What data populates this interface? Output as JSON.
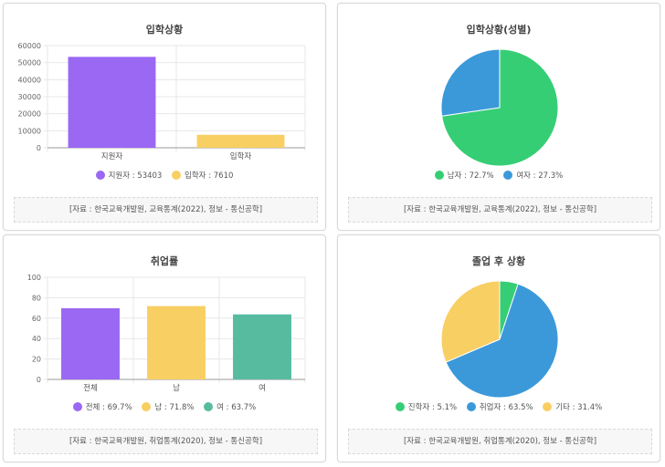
{
  "colors": {
    "purple": "#9b68f3",
    "yellow": "#f8cf63",
    "green": "#36ce75",
    "blue": "#3b99da",
    "teal": "#57bba0",
    "grid": "#e7e7e7",
    "axis": "#9a9a9a"
  },
  "chart_data": [
    {
      "id": "admission",
      "type": "bar",
      "title": "입학상황",
      "categories": [
        "지원자",
        "입학자"
      ],
      "values": [
        53403,
        7610
      ],
      "colors": [
        "#9b68f3",
        "#f8cf63"
      ],
      "ylim": [
        0,
        60000
      ],
      "yticks": [
        0,
        10000,
        20000,
        30000,
        40000,
        50000,
        60000
      ],
      "grid": true,
      "legend_position": "bottom",
      "legend": [
        "지원자 : 53403",
        "입학자 : 7610"
      ],
      "source": "[자료 : 한국교육개발원, 교육통계(2022), 정보 - 통신공학]"
    },
    {
      "id": "gender",
      "type": "pie",
      "title": "입학상황(성별)",
      "categories": [
        "남자",
        "여자"
      ],
      "values": [
        72.7,
        27.3
      ],
      "colors": [
        "#36ce75",
        "#3b99da"
      ],
      "legend_position": "bottom",
      "legend": [
        "남자 : 72.7%",
        "여자 : 27.3%"
      ],
      "source": "[자료 : 한국교육개발원, 교육통계(2022), 정보 - 통신공학]"
    },
    {
      "id": "employment",
      "type": "bar",
      "title": "취업률",
      "categories": [
        "전체",
        "남",
        "여"
      ],
      "values": [
        69.7,
        71.8,
        63.7
      ],
      "colors": [
        "#9b68f3",
        "#f8cf63",
        "#57bba0"
      ],
      "ylim": [
        0,
        100
      ],
      "yticks": [
        0,
        20,
        40,
        60,
        80,
        100
      ],
      "grid": true,
      "legend_position": "bottom",
      "legend": [
        "전체 : 69.7%",
        "남 : 71.8%",
        "여 : 63.7%"
      ],
      "source": "[자료 : 한국교육개발원, 취업통계(2020), 정보 - 통신공학]"
    },
    {
      "id": "after_graduation",
      "type": "pie",
      "title": "졸업 후 상황",
      "categories": [
        "진학자",
        "취업자",
        "기타"
      ],
      "values": [
        5.1,
        63.5,
        31.4
      ],
      "colors": [
        "#36ce75",
        "#3b99da",
        "#f8cf63"
      ],
      "legend_position": "bottom",
      "legend": [
        "진학자 : 5.1%",
        "취업자 : 63.5%",
        "기타 : 31.4%"
      ],
      "source": "[자료 : 한국교육개발원, 취업통계(2020), 정보 - 통신공학]"
    }
  ]
}
